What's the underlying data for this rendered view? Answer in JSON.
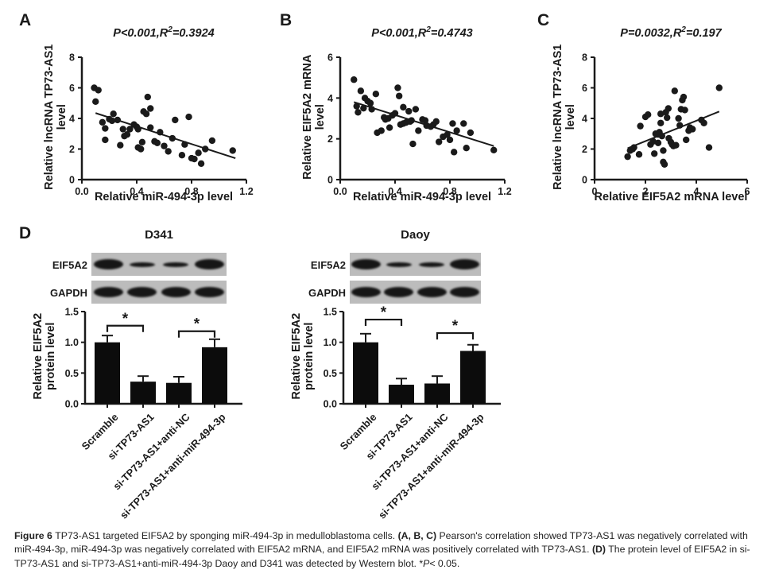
{
  "figure": {
    "panels": {
      "A": {
        "label": "A",
        "chart_data": {
          "type": "scatter",
          "title": {
            "pre": "P<0.001,R",
            "sup": "2",
            "post": "=0.3924"
          },
          "xlabel": "Relative miR-494-3p level",
          "ylabel_lines": [
            "Relative lncRNA TP73-AS1",
            "level"
          ],
          "xlim": [
            0,
            1.2
          ],
          "ylim": [
            0,
            8
          ],
          "xticks": [
            {
              "v": 0,
              "t": "0.0"
            },
            {
              "v": 0.4,
              "t": "0.4"
            },
            {
              "v": 0.8,
              "t": "0.8"
            },
            {
              "v": 1.2,
              "t": "1.2"
            }
          ],
          "yticks": [
            {
              "v": 0,
              "t": "0"
            },
            {
              "v": 2,
              "t": "2"
            },
            {
              "v": 4,
              "t": "4"
            },
            {
              "v": 6,
              "t": "6"
            },
            {
              "v": 8,
              "t": "8"
            }
          ],
          "points": [
            [
              0.09,
              6.0
            ],
            [
              0.12,
              5.85
            ],
            [
              0.1,
              5.1
            ],
            [
              0.15,
              3.75
            ],
            [
              0.17,
              3.35
            ],
            [
              0.17,
              2.6
            ],
            [
              0.2,
              3.95
            ],
            [
              0.22,
              3.85
            ],
            [
              0.23,
              4.3
            ],
            [
              0.26,
              3.9
            ],
            [
              0.28,
              2.25
            ],
            [
              0.3,
              3.3
            ],
            [
              0.31,
              2.85
            ],
            [
              0.33,
              2.95
            ],
            [
              0.35,
              3.3
            ],
            [
              0.38,
              3.6
            ],
            [
              0.4,
              3.45
            ],
            [
              0.41,
              3.3
            ],
            [
              0.41,
              2.1
            ],
            [
              0.43,
              2.0
            ],
            [
              0.44,
              2.45
            ],
            [
              0.45,
              4.45
            ],
            [
              0.47,
              4.3
            ],
            [
              0.48,
              5.4
            ],
            [
              0.5,
              4.65
            ],
            [
              0.5,
              3.4
            ],
            [
              0.53,
              2.5
            ],
            [
              0.55,
              2.4
            ],
            [
              0.57,
              3.1
            ],
            [
              0.6,
              2.2
            ],
            [
              0.63,
              1.85
            ],
            [
              0.66,
              2.7
            ],
            [
              0.68,
              3.9
            ],
            [
              0.73,
              1.6
            ],
            [
              0.75,
              2.3
            ],
            [
              0.78,
              4.1
            ],
            [
              0.8,
              1.4
            ],
            [
              0.82,
              1.35
            ],
            [
              0.85,
              1.75
            ],
            [
              0.87,
              1.05
            ],
            [
              0.9,
              2.0
            ],
            [
              0.95,
              2.55
            ],
            [
              1.1,
              1.9
            ]
          ],
          "trend": [
            [
              0.1,
              4.35
            ],
            [
              1.12,
              1.4
            ]
          ]
        }
      },
      "B": {
        "label": "B",
        "chart_data": {
          "type": "scatter",
          "title": {
            "pre": "P<0.001,R",
            "sup": "2",
            "post": "=0.4743"
          },
          "xlabel": "Relative miR-494-3p level",
          "ylabel_lines": [
            "Relative EIF5A2 mRNA",
            "level"
          ],
          "xlim": [
            0,
            1.2
          ],
          "ylim": [
            0,
            6
          ],
          "xticks": [
            {
              "v": 0,
              "t": "0.0"
            },
            {
              "v": 0.4,
              "t": "0.4"
            },
            {
              "v": 0.8,
              "t": "0.8"
            },
            {
              "v": 1.2,
              "t": "1.2"
            }
          ],
          "yticks": [
            {
              "v": 0,
              "t": "0"
            },
            {
              "v": 2,
              "t": "2"
            },
            {
              "v": 4,
              "t": "4"
            },
            {
              "v": 6,
              "t": "6"
            }
          ],
          "points": [
            [
              0.1,
              4.9
            ],
            [
              0.12,
              3.6
            ],
            [
              0.13,
              3.3
            ],
            [
              0.15,
              4.35
            ],
            [
              0.17,
              3.5
            ],
            [
              0.18,
              4.0
            ],
            [
              0.2,
              3.85
            ],
            [
              0.22,
              3.75
            ],
            [
              0.23,
              3.45
            ],
            [
              0.26,
              4.2
            ],
            [
              0.27,
              2.3
            ],
            [
              0.3,
              2.4
            ],
            [
              0.32,
              3.05
            ],
            [
              0.33,
              2.95
            ],
            [
              0.35,
              3.0
            ],
            [
              0.36,
              2.55
            ],
            [
              0.38,
              3.15
            ],
            [
              0.4,
              3.25
            ],
            [
              0.42,
              4.5
            ],
            [
              0.43,
              4.1
            ],
            [
              0.44,
              2.7
            ],
            [
              0.46,
              2.75
            ],
            [
              0.46,
              3.55
            ],
            [
              0.48,
              2.8
            ],
            [
              0.5,
              3.35
            ],
            [
              0.51,
              2.85
            ],
            [
              0.52,
              2.9
            ],
            [
              0.53,
              1.75
            ],
            [
              0.55,
              3.45
            ],
            [
              0.57,
              2.4
            ],
            [
              0.6,
              2.95
            ],
            [
              0.62,
              2.9
            ],
            [
              0.63,
              2.65
            ],
            [
              0.66,
              2.6
            ],
            [
              0.68,
              2.7
            ],
            [
              0.7,
              2.85
            ],
            [
              0.72,
              1.85
            ],
            [
              0.75,
              2.1
            ],
            [
              0.78,
              2.2
            ],
            [
              0.8,
              1.95
            ],
            [
              0.82,
              2.75
            ],
            [
              0.83,
              1.35
            ],
            [
              0.85,
              2.4
            ],
            [
              0.9,
              2.75
            ],
            [
              0.92,
              1.55
            ],
            [
              0.95,
              2.3
            ],
            [
              1.12,
              1.45
            ]
          ],
          "trend": [
            [
              0.1,
              3.8
            ],
            [
              1.12,
              1.65
            ]
          ]
        }
      },
      "C": {
        "label": "C",
        "chart_data": {
          "type": "scatter",
          "title": {
            "pre": "P=0.0032,R",
            "sup": "2",
            "post": "=0.197"
          },
          "xlabel": "Relative EIF5A2 mRNA level",
          "ylabel_lines": [
            "Relative lncRNA TP73-AS1",
            "level"
          ],
          "xlim": [
            0,
            6
          ],
          "ylim": [
            0,
            8
          ],
          "xticks": [
            {
              "v": 0,
              "t": "0"
            },
            {
              "v": 2,
              "t": "2"
            },
            {
              "v": 4,
              "t": "4"
            },
            {
              "v": 6,
              "t": "6"
            }
          ],
          "yticks": [
            {
              "v": 0,
              "t": "0"
            },
            {
              "v": 2,
              "t": "2"
            },
            {
              "v": 4,
              "t": "4"
            },
            {
              "v": 6,
              "t": "6"
            },
            {
              "v": 8,
              "t": "8"
            }
          ],
          "points": [
            [
              1.3,
              1.5
            ],
            [
              1.4,
              1.9
            ],
            [
              1.5,
              2.0
            ],
            [
              1.55,
              2.1
            ],
            [
              1.75,
              1.65
            ],
            [
              1.8,
              3.5
            ],
            [
              2.0,
              4.1
            ],
            [
              2.1,
              4.25
            ],
            [
              2.2,
              2.3
            ],
            [
              2.3,
              2.5
            ],
            [
              2.35,
              1.7
            ],
            [
              2.4,
              3.0
            ],
            [
              2.5,
              2.95
            ],
            [
              2.5,
              2.4
            ],
            [
              2.55,
              3.1
            ],
            [
              2.6,
              4.3
            ],
            [
              2.6,
              3.7
            ],
            [
              2.65,
              2.85
            ],
            [
              2.7,
              1.9
            ],
            [
              2.7,
              1.15
            ],
            [
              2.75,
              1.0
            ],
            [
              2.8,
              4.4
            ],
            [
              2.85,
              4.05
            ],
            [
              2.9,
              4.65
            ],
            [
              2.92,
              2.7
            ],
            [
              3.0,
              2.45
            ],
            [
              3.05,
              2.3
            ],
            [
              3.1,
              2.2
            ],
            [
              3.15,
              5.8
            ],
            [
              3.2,
              2.25
            ],
            [
              3.3,
              4.0
            ],
            [
              3.35,
              3.55
            ],
            [
              3.4,
              4.6
            ],
            [
              3.45,
              5.2
            ],
            [
              3.5,
              5.4
            ],
            [
              3.55,
              4.55
            ],
            [
              3.6,
              2.6
            ],
            [
              3.7,
              3.2
            ],
            [
              3.75,
              3.4
            ],
            [
              3.85,
              3.3
            ],
            [
              4.2,
              3.9
            ],
            [
              4.3,
              3.7
            ],
            [
              4.5,
              2.1
            ],
            [
              4.9,
              6.0
            ]
          ],
          "trend": [
            [
              1.3,
              2.05
            ],
            [
              4.9,
              4.45
            ]
          ]
        }
      },
      "D": {
        "label": "D",
        "blots": [
          {
            "title": "D341",
            "rows": [
              {
                "label": "EIF5A2",
                "bands": [
                  "strong",
                  "weak",
                  "weak",
                  "strong"
                ]
              },
              {
                "label": "GAPDH",
                "bands": [
                  "strong",
                  "strong",
                  "strong",
                  "strong"
                ]
              }
            ]
          },
          {
            "title": "Daoy",
            "rows": [
              {
                "label": "EIF5A2",
                "bands": [
                  "strong",
                  "weak",
                  "weak",
                  "strong"
                ]
              },
              {
                "label": "GAPDH",
                "bands": [
                  "strong",
                  "strong",
                  "strong",
                  "strong"
                ]
              }
            ]
          }
        ],
        "chart_data": [
          {
            "type": "bar",
            "cell_line": "D341",
            "ylabel_lines": [
              "Relative EIF5A2",
              "protein level"
            ],
            "categories": [
              "Scramble",
              "si-TP73-AS1",
              "si-TP73-AS1+anti-NC",
              "si-TP73-AS1+anti-miR-494-3p"
            ],
            "values": [
              1.0,
              0.36,
              0.34,
              0.92
            ],
            "errors": [
              0.11,
              0.09,
              0.1,
              0.13
            ],
            "ylim": [
              0,
              1.5
            ],
            "yticks": [
              {
                "v": 0,
                "t": "0.0"
              },
              {
                "v": 0.5,
                "t": "0.5"
              },
              {
                "v": 1,
                "t": "1.0"
              },
              {
                "v": 1.5,
                "t": "1.5"
              }
            ],
            "brackets": [
              {
                "from": 0,
                "to": 1,
                "y": 1.27,
                "label": "*"
              },
              {
                "from": 2,
                "to": 3,
                "y": 1.18,
                "label": "*"
              }
            ]
          },
          {
            "type": "bar",
            "cell_line": "Daoy",
            "ylabel_lines": [
              "Relative EIF5A2",
              "protein level"
            ],
            "categories": [
              "Scramble",
              "si-TP73-AS1",
              "si-TP73-AS1+anti-NC",
              "si-TP73-AS1+anti-miR-494-3p"
            ],
            "values": [
              1.0,
              0.31,
              0.33,
              0.86
            ],
            "errors": [
              0.14,
              0.1,
              0.12,
              0.1
            ],
            "ylim": [
              0,
              1.5
            ],
            "yticks": [
              {
                "v": 0,
                "t": "0.0"
              },
              {
                "v": 0.5,
                "t": "0.5"
              },
              {
                "v": 1,
                "t": "1.0"
              },
              {
                "v": 1.5,
                "t": "1.5"
              }
            ],
            "brackets": [
              {
                "from": 0,
                "to": 1,
                "y": 1.37,
                "label": "*"
              },
              {
                "from": 2,
                "to": 3,
                "y": 1.15,
                "label": "*"
              }
            ]
          }
        ]
      }
    },
    "caption": {
      "segments": [
        {
          "t": "Figure 6 ",
          "b": true
        },
        {
          "t": "TP73-AS1 targeted EIF5A2 by sponging miR-494-3p in medulloblastoma cells. "
        },
        {
          "t": "(A, B, C)",
          "b": true
        },
        {
          "t": " Pearson's correlation showed TP73-AS1 was negatively correlated with miR-494-3p, miR-494-3p was negatively correlated with EIF5A2 mRNA, and EIF5A2 mRNA was positively correlated with TP73-AS1. "
        },
        {
          "t": "(D)",
          "b": true
        },
        {
          "t": " The protein level of EIF5A2 in si-TP73-AS1 and si-TP73-AS1+anti-miR-494-3p Daoy and D341 was detected by Western blot. *"
        },
        {
          "t": "P",
          "i": true
        },
        {
          "t": "< 0.05."
        }
      ]
    }
  },
  "colors": {
    "ink": "#1a1a1a",
    "blot_bg": "#bcbcbc",
    "band": "#161616",
    "bar_fill": "#0c0c0c"
  }
}
